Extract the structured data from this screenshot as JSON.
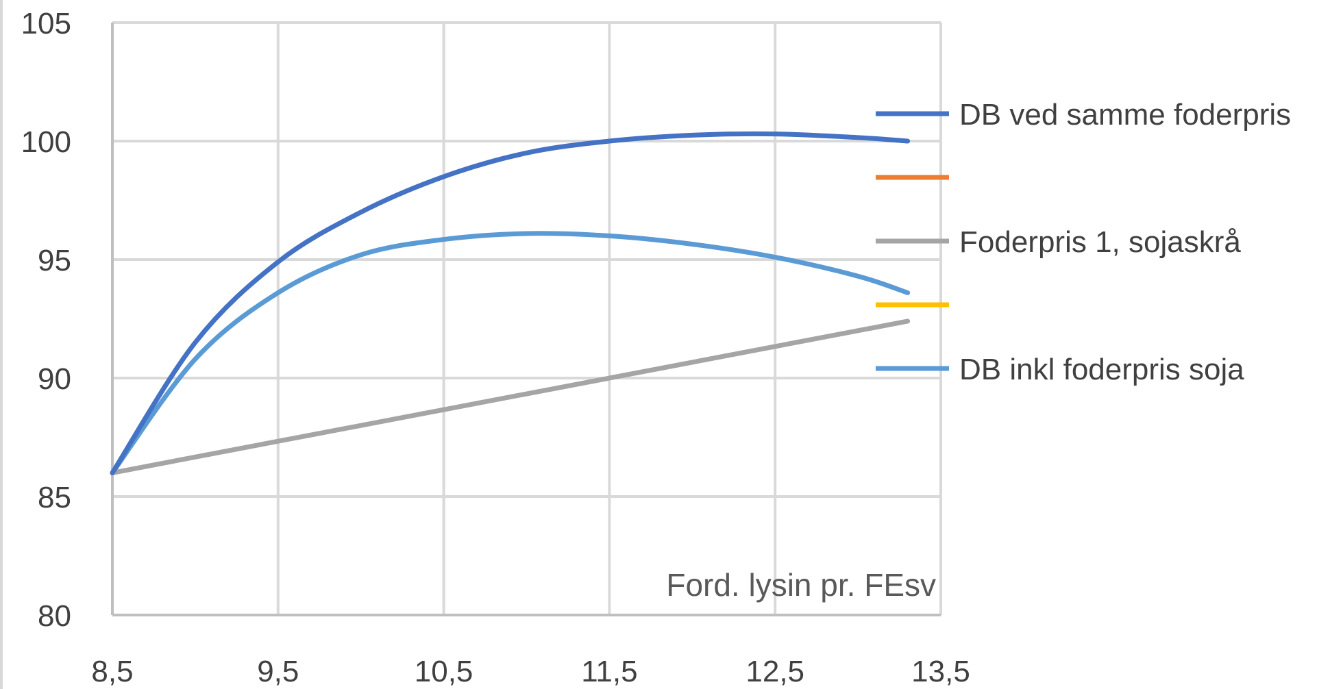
{
  "chart_data": {
    "type": "line",
    "title": "",
    "xlabel": "",
    "ylabel": "",
    "annotation": "Ford. lysin pr. FEsv",
    "xlim": [
      8.5,
      13.5
    ],
    "ylim": [
      80,
      105
    ],
    "x_ticks": [
      "8,5",
      "9,5",
      "10,5",
      "11,5",
      "12,5",
      "13,5"
    ],
    "x_tick_values": [
      8.5,
      9.5,
      10.5,
      11.5,
      12.5,
      13.5
    ],
    "y_ticks": [
      "80",
      "85",
      "90",
      "95",
      "100",
      "105"
    ],
    "y_tick_values": [
      80,
      85,
      90,
      95,
      100,
      105
    ],
    "grid": true,
    "legend_position": "right",
    "series": [
      {
        "name": "DB ved samme foderpris",
        "color": "#4472c4",
        "x": [
          8.5,
          9.0,
          9.5,
          10.0,
          10.5,
          11.0,
          11.5,
          12.0,
          12.5,
          13.0,
          13.3
        ],
        "y": [
          86.0,
          91.5,
          94.9,
          97.0,
          98.5,
          99.5,
          100.0,
          100.25,
          100.3,
          100.15,
          100.0
        ]
      },
      {
        "name": "",
        "color": "#ed7d31",
        "x": [],
        "y": []
      },
      {
        "name": "Foderpris 1, sojaskrå",
        "color": "#a5a5a5",
        "x": [
          8.5,
          13.3
        ],
        "y": [
          86.0,
          92.4
        ]
      },
      {
        "name": "",
        "color": "#ffc000",
        "x": [],
        "y": []
      },
      {
        "name": "DB inkl foderpris soja",
        "color": "#5b9bd5",
        "x": [
          8.5,
          9.0,
          9.5,
          10.0,
          10.5,
          11.0,
          11.5,
          12.0,
          12.5,
          13.0,
          13.3
        ],
        "y": [
          86.0,
          90.8,
          93.6,
          95.2,
          95.85,
          96.1,
          96.0,
          95.65,
          95.1,
          94.3,
          93.6
        ]
      }
    ]
  }
}
